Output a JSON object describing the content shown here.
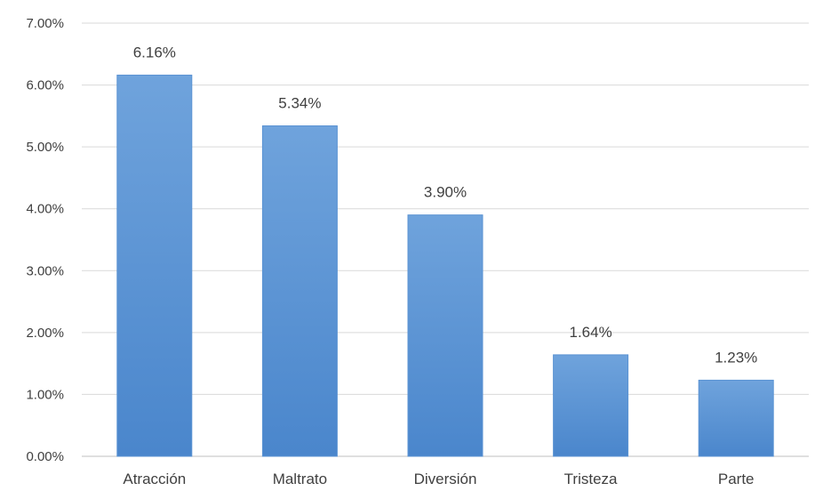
{
  "chart_data": {
    "type": "bar",
    "categories": [
      "Atracción",
      "Maltrato",
      "Diversión",
      "Tristeza",
      "Parte"
    ],
    "values": [
      6.16,
      5.34,
      3.9,
      1.64,
      1.23
    ],
    "data_labels": [
      "6.16%",
      "5.34%",
      "3.90%",
      "1.64%",
      "1.23%"
    ],
    "y_ticks": [
      "0.00%",
      "1.00%",
      "2.00%",
      "3.00%",
      "4.00%",
      "5.00%",
      "6.00%",
      "7.00%"
    ],
    "ylim": [
      0,
      7
    ],
    "y_unit": "%",
    "title": "",
    "xlabel": "",
    "ylabel": "",
    "grid": true,
    "legend": "none",
    "colors": {
      "bar_top": "#6fa3dc",
      "bar_bottom": "#4a86cc",
      "gridline": "#d9d9d9",
      "axis_line": "#bfbfbf",
      "text": "#404040"
    }
  }
}
